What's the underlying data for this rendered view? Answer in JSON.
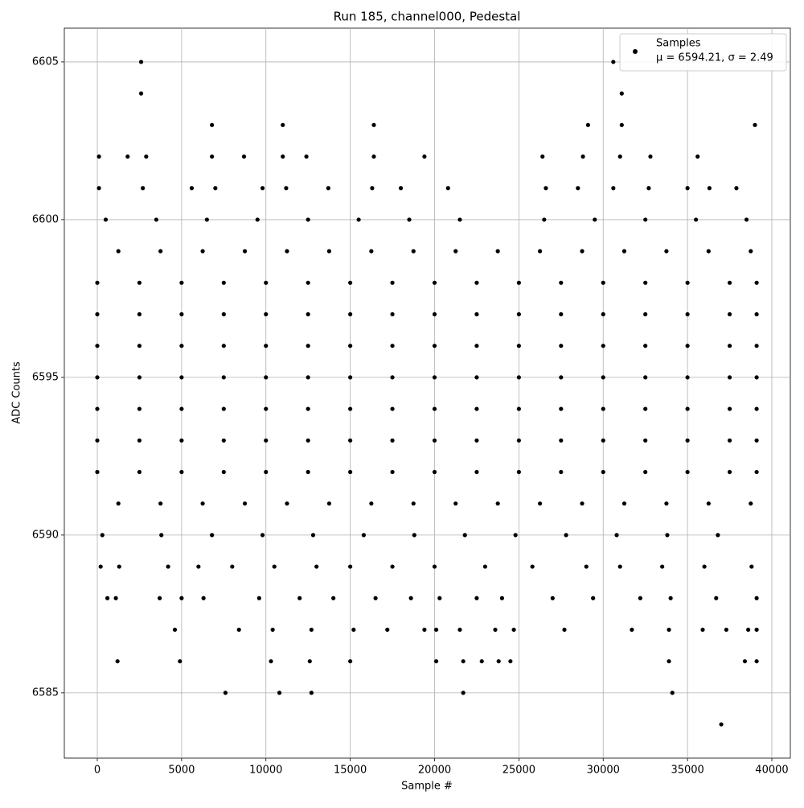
{
  "chart_data": {
    "type": "scatter",
    "title": "Run 185, channel000, Pedestal",
    "x_label": "Sample #",
    "y_label": "ADC Counts",
    "xlim": [
      -1955,
      41097
    ],
    "ylim": [
      6582.93,
      6606.07
    ],
    "xticks": [
      0,
      5000,
      10000,
      15000,
      20000,
      25000,
      30000,
      35000,
      40000
    ],
    "yticks": [
      6585,
      6590,
      6595,
      6600,
      6605
    ],
    "grid": true,
    "legend": "upper right",
    "annotation": "μ = 6594.21, σ = 2.49",
    "series": [
      {
        "name": "Samples",
        "color": "#000000",
        "x": [
          0,
          2500,
          5000,
          7500,
          10000,
          12500,
          15000,
          17500,
          20000,
          22500,
          25000,
          27500,
          30000,
          32500,
          35000,
          37500,
          39100,
          0,
          2500,
          5000,
          7500,
          10000,
          12500,
          15000,
          17500,
          20000,
          22500,
          25000,
          27500,
          30000,
          32500,
          35000,
          37500,
          39100,
          0,
          2500,
          5000,
          7500,
          10000,
          12500,
          15000,
          17500,
          20000,
          22500,
          25000,
          27500,
          30000,
          32500,
          35000,
          37500,
          39100,
          0,
          2500,
          5000,
          7500,
          10000,
          12500,
          15000,
          17500,
          20000,
          22500,
          25000,
          27500,
          30000,
          32500,
          35000,
          37500,
          39100,
          0,
          2500,
          5000,
          7500,
          10000,
          12500,
          15000,
          17500,
          20000,
          22500,
          25000,
          27500,
          30000,
          32500,
          35000,
          37500,
          39100,
          0,
          2500,
          5000,
          7500,
          10000,
          12500,
          15000,
          17500,
          20000,
          22500,
          25000,
          27500,
          30000,
          32500,
          35000,
          37500,
          39100,
          0,
          2500,
          5000,
          7500,
          10000,
          12500,
          15000,
          17500,
          20000,
          22500,
          25000,
          27500,
          30000,
          32500,
          35000,
          37500,
          39100,
          1250,
          3750,
          6250,
          8750,
          11250,
          13750,
          16250,
          18750,
          21250,
          23750,
          26250,
          28750,
          31250,
          33750,
          36250,
          38750,
          1250,
          3750,
          6250,
          8750,
          11250,
          13750,
          16250,
          18750,
          21250,
          23750,
          26250,
          28750,
          31250,
          33750,
          36250,
          38750,
          500,
          3500,
          6500,
          9500,
          12500,
          15500,
          18500,
          21500,
          26500,
          29500,
          32500,
          35500,
          38500,
          300,
          3800,
          6800,
          9800,
          12800,
          15800,
          18800,
          21800,
          24800,
          27800,
          30800,
          33800,
          36800,
          100,
          2700,
          5600,
          7000,
          9800,
          11200,
          13700,
          16300,
          18000,
          20800,
          26600,
          28500,
          30600,
          32700,
          35000,
          36300,
          37900,
          200,
          1300,
          4200,
          6000,
          8000,
          10500,
          13000,
          15000,
          17500,
          20000,
          23000,
          25800,
          29000,
          31000,
          33500,
          36000,
          38800,
          600,
          1100,
          3700,
          5000,
          6300,
          9600,
          12000,
          14000,
          16500,
          18600,
          20300,
          22500,
          24000,
          27000,
          29400,
          32200,
          34000,
          36700,
          39100,
          100,
          1800,
          2900,
          6800,
          8700,
          11000,
          12400,
          16400,
          19400,
          26400,
          28800,
          31000,
          32800,
          35600,
          4600,
          8400,
          10400,
          12700,
          15200,
          17200,
          19400,
          20100,
          21500,
          23600,
          24700,
          27700,
          31700,
          33900,
          35900,
          37300,
          38600,
          39100,
          1200,
          4900,
          10300,
          12600,
          15000,
          20100,
          21700,
          22800,
          23800,
          24500,
          33900,
          38400,
          39100,
          6800,
          11000,
          16400,
          29100,
          31100,
          39000,
          2600,
          31100,
          2600,
          30600,
          7600,
          10800,
          12700,
          21700,
          34100,
          37000
        ],
        "values": [
          6598,
          6598,
          6598,
          6598,
          6598,
          6598,
          6598,
          6598,
          6598,
          6598,
          6598,
          6598,
          6598,
          6598,
          6598,
          6598,
          6598,
          6597,
          6597,
          6597,
          6597,
          6597,
          6597,
          6597,
          6597,
          6597,
          6597,
          6597,
          6597,
          6597,
          6597,
          6597,
          6597,
          6597,
          6596,
          6596,
          6596,
          6596,
          6596,
          6596,
          6596,
          6596,
          6596,
          6596,
          6596,
          6596,
          6596,
          6596,
          6596,
          6596,
          6596,
          6595,
          6595,
          6595,
          6595,
          6595,
          6595,
          6595,
          6595,
          6595,
          6595,
          6595,
          6595,
          6595,
          6595,
          6595,
          6595,
          6595,
          6594,
          6594,
          6594,
          6594,
          6594,
          6594,
          6594,
          6594,
          6594,
          6594,
          6594,
          6594,
          6594,
          6594,
          6594,
          6594,
          6594,
          6593,
          6593,
          6593,
          6593,
          6593,
          6593,
          6593,
          6593,
          6593,
          6593,
          6593,
          6593,
          6593,
          6593,
          6593,
          6593,
          6593,
          6592,
          6592,
          6592,
          6592,
          6592,
          6592,
          6592,
          6592,
          6592,
          6592,
          6592,
          6592,
          6592,
          6592,
          6592,
          6592,
          6592,
          6599,
          6599,
          6599,
          6599,
          6599,
          6599,
          6599,
          6599,
          6599,
          6599,
          6599,
          6599,
          6599,
          6599,
          6599,
          6599,
          6591,
          6591,
          6591,
          6591,
          6591,
          6591,
          6591,
          6591,
          6591,
          6591,
          6591,
          6591,
          6591,
          6591,
          6591,
          6591,
          6600,
          6600,
          6600,
          6600,
          6600,
          6600,
          6600,
          6600,
          6600,
          6600,
          6600,
          6600,
          6600,
          6590,
          6590,
          6590,
          6590,
          6590,
          6590,
          6590,
          6590,
          6590,
          6590,
          6590,
          6590,
          6590,
          6601,
          6601,
          6601,
          6601,
          6601,
          6601,
          6601,
          6601,
          6601,
          6601,
          6601,
          6601,
          6601,
          6601,
          6601,
          6601,
          6601,
          6589,
          6589,
          6589,
          6589,
          6589,
          6589,
          6589,
          6589,
          6589,
          6589,
          6589,
          6589,
          6589,
          6589,
          6589,
          6589,
          6589,
          6588,
          6588,
          6588,
          6588,
          6588,
          6588,
          6588,
          6588,
          6588,
          6588,
          6588,
          6588,
          6588,
          6588,
          6588,
          6588,
          6588,
          6588,
          6588,
          6602,
          6602,
          6602,
          6602,
          6602,
          6602,
          6602,
          6602,
          6602,
          6602,
          6602,
          6602,
          6602,
          6602,
          6587,
          6587,
          6587,
          6587,
          6587,
          6587,
          6587,
          6587,
          6587,
          6587,
          6587,
          6587,
          6587,
          6587,
          6587,
          6587,
          6587,
          6587,
          6586,
          6586,
          6586,
          6586,
          6586,
          6586,
          6586,
          6586,
          6586,
          6586,
          6586,
          6586,
          6586,
          6603,
          6603,
          6603,
          6603,
          6603,
          6603,
          6604,
          6604,
          6605,
          6605,
          6585,
          6585,
          6585,
          6585,
          6585,
          6584
        ]
      }
    ]
  }
}
